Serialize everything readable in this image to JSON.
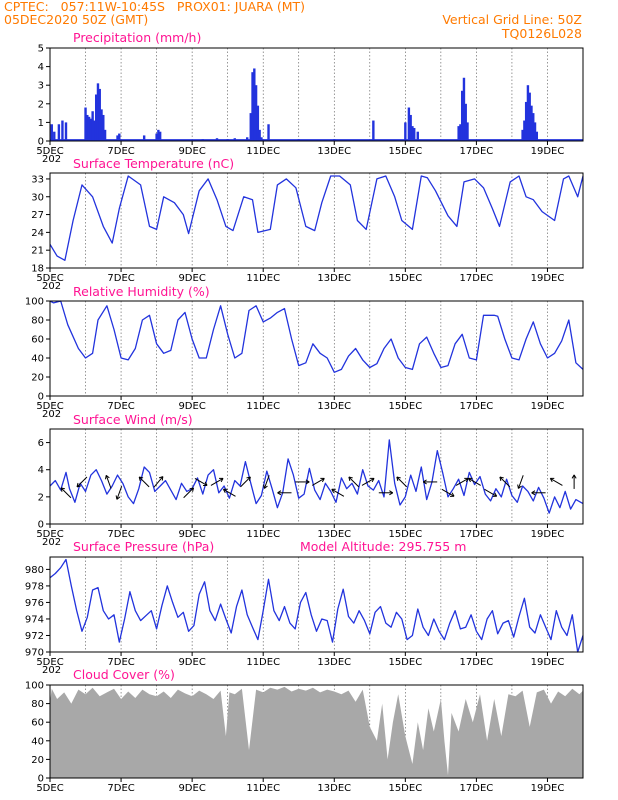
{
  "header": {
    "line1": "CPTEC:   057:11W-10:45S   PROX01: JUARA (MT)",
    "line2": "05DEC2020 50Z (GMT)",
    "grid_note": "Vertical Grid Line: 50Z",
    "code": "TQ0126L028"
  },
  "colors": {
    "header": "#ff7a00",
    "titles": "#ff1493",
    "series": "#2233dd",
    "cloud": "#a8a8a8",
    "grid": "#555555"
  },
  "x_axis": {
    "labels": [
      "5DEC",
      "7DEC",
      "9DEC",
      "11DEC",
      "13DEC",
      "15DEC",
      "17DEC",
      "19DEC"
    ],
    "label_days": [
      5,
      7,
      9,
      11,
      13,
      15,
      17,
      19
    ],
    "year_fragment": "202",
    "range_days": [
      5,
      20
    ]
  },
  "chart_data": [
    {
      "id": "precip",
      "type": "bar",
      "title": "Precipitation (mm/h)",
      "ylim": [
        0,
        5
      ],
      "yticks": [
        0,
        1,
        2,
        3,
        4,
        5
      ],
      "events": [
        [
          5.05,
          0.9
        ],
        [
          5.12,
          0.5
        ],
        [
          5.25,
          0.9
        ],
        [
          5.35,
          1.1
        ],
        [
          5.45,
          1.0
        ],
        [
          6.0,
          1.8
        ],
        [
          6.05,
          1.4
        ],
        [
          6.1,
          1.3
        ],
        [
          6.15,
          1.2
        ],
        [
          6.2,
          1.6
        ],
        [
          6.25,
          1.1
        ],
        [
          6.3,
          2.5
        ],
        [
          6.35,
          3.1
        ],
        [
          6.4,
          2.8
        ],
        [
          6.45,
          1.7
        ],
        [
          6.5,
          1.4
        ],
        [
          6.55,
          0.6
        ],
        [
          6.9,
          0.3
        ],
        [
          6.95,
          0.4
        ],
        [
          7.65,
          0.3
        ],
        [
          8.0,
          0.4
        ],
        [
          8.05,
          0.6
        ],
        [
          8.1,
          0.5
        ],
        [
          9.3,
          0.1
        ],
        [
          9.7,
          0.15
        ],
        [
          10.0,
          0.1
        ],
        [
          10.2,
          0.15
        ],
        [
          10.55,
          0.2
        ],
        [
          10.65,
          1.5
        ],
        [
          10.7,
          3.7
        ],
        [
          10.75,
          3.9
        ],
        [
          10.8,
          3.0
        ],
        [
          10.85,
          1.9
        ],
        [
          10.9,
          0.6
        ],
        [
          10.95,
          0.2
        ],
        [
          11.15,
          0.9
        ],
        [
          12.0,
          0.1
        ],
        [
          13.0,
          0.1
        ],
        [
          14.1,
          1.1
        ],
        [
          15.0,
          1.0
        ],
        [
          15.1,
          1.8
        ],
        [
          15.15,
          1.4
        ],
        [
          15.2,
          0.8
        ],
        [
          15.25,
          0.7
        ],
        [
          15.35,
          0.5
        ],
        [
          16.5,
          0.8
        ],
        [
          16.55,
          0.9
        ],
        [
          16.6,
          2.7
        ],
        [
          16.65,
          3.4
        ],
        [
          16.7,
          2.0
        ],
        [
          16.75,
          1.0
        ],
        [
          18.3,
          0.6
        ],
        [
          18.35,
          1.1
        ],
        [
          18.4,
          2.1
        ],
        [
          18.45,
          3.0
        ],
        [
          18.5,
          2.6
        ],
        [
          18.55,
          1.9
        ],
        [
          18.6,
          1.5
        ],
        [
          18.65,
          1.0
        ],
        [
          18.7,
          0.5
        ]
      ],
      "baseline": 0.05
    },
    {
      "id": "temp",
      "type": "line",
      "title": "Surface Temperature (nC)",
      "ylim": [
        18,
        34
      ],
      "yticks": [
        18,
        21,
        24,
        27,
        30,
        33
      ],
      "x": [
        5.0,
        5.2,
        5.42,
        5.65,
        5.9,
        6.2,
        6.5,
        6.75,
        6.95,
        7.2,
        7.55,
        7.8,
        8.0,
        8.2,
        8.5,
        8.75,
        8.9,
        9.2,
        9.45,
        9.7,
        9.95,
        10.15,
        10.45,
        10.7,
        10.85,
        11.2,
        11.4,
        11.65,
        11.92,
        12.2,
        12.45,
        12.65,
        12.9,
        13.15,
        13.45,
        13.65,
        13.9,
        14.2,
        14.45,
        14.7,
        14.9,
        15.2,
        15.45,
        15.62,
        15.85,
        16.2,
        16.45,
        16.65,
        16.95,
        17.2,
        17.45,
        17.65,
        17.95,
        18.2,
        18.4,
        18.6,
        18.85,
        19.2,
        19.45,
        19.6,
        19.85,
        20.0
      ],
      "y": [
        22,
        20,
        19.3,
        26,
        32,
        30,
        25,
        22.2,
        28,
        33.5,
        32,
        25,
        24.5,
        30,
        29,
        27,
        23.8,
        31,
        33,
        29.5,
        25,
        24.3,
        30,
        29.5,
        24,
        24.5,
        32,
        33,
        31.5,
        25,
        24.3,
        29,
        33.5,
        33.5,
        32,
        26,
        24.5,
        33,
        33.5,
        30,
        26,
        24.5,
        33.5,
        33.2,
        31,
        26.8,
        25,
        32.5,
        33,
        31.5,
        28,
        25,
        32.5,
        33.5,
        30,
        29.5,
        27.5,
        26,
        33,
        33.5,
        30,
        33.5
      ]
    },
    {
      "id": "humidity",
      "type": "line",
      "title": "Relative Humidity (%)",
      "ylim": [
        0,
        100
      ],
      "yticks": [
        0,
        20,
        40,
        60,
        80,
        100
      ],
      "x": [
        5.0,
        5.1,
        5.3,
        5.5,
        5.8,
        6.0,
        6.2,
        6.35,
        6.6,
        6.8,
        7.0,
        7.2,
        7.4,
        7.6,
        7.8,
        8.0,
        8.2,
        8.4,
        8.6,
        8.8,
        9.0,
        9.2,
        9.4,
        9.6,
        9.8,
        10.0,
        10.2,
        10.4,
        10.6,
        10.8,
        11.0,
        11.2,
        11.4,
        11.6,
        11.8,
        12.0,
        12.2,
        12.4,
        12.6,
        12.8,
        13.0,
        13.2,
        13.4,
        13.6,
        13.8,
        14.0,
        14.2,
        14.4,
        14.6,
        14.8,
        15.0,
        15.2,
        15.4,
        15.6,
        15.8,
        16.0,
        16.2,
        16.4,
        16.6,
        16.8,
        17.0,
        17.2,
        17.5,
        17.6,
        17.8,
        18.0,
        18.2,
        18.4,
        18.6,
        18.8,
        19.0,
        19.2,
        19.4,
        19.6,
        19.8,
        20.0
      ],
      "y": [
        100,
        98,
        100,
        75,
        50,
        40,
        45,
        80,
        95,
        70,
        40,
        38,
        50,
        80,
        85,
        55,
        45,
        48,
        80,
        88,
        60,
        40,
        40,
        70,
        95,
        65,
        40,
        45,
        90,
        95,
        78,
        82,
        88,
        92,
        60,
        32,
        35,
        55,
        45,
        40,
        25,
        28,
        42,
        50,
        38,
        30,
        34,
        50,
        60,
        40,
        30,
        28,
        55,
        62,
        45,
        30,
        32,
        55,
        65,
        40,
        38,
        85,
        85,
        84,
        60,
        40,
        38,
        60,
        78,
        55,
        40,
        45,
        58,
        80,
        35,
        28
      ]
    },
    {
      "id": "wind",
      "type": "line",
      "title": "Surface Wind (m/s)",
      "ylim": [
        0,
        7
      ],
      "yticks": [
        0,
        2,
        4,
        6
      ],
      "x": [
        5.0,
        5.15,
        5.3,
        5.45,
        5.55,
        5.7,
        5.85,
        6.0,
        6.15,
        6.3,
        6.45,
        6.6,
        6.75,
        6.9,
        7.05,
        7.2,
        7.35,
        7.5,
        7.65,
        7.8,
        7.95,
        8.1,
        8.25,
        8.4,
        8.55,
        8.7,
        8.85,
        9.0,
        9.15,
        9.3,
        9.45,
        9.6,
        9.75,
        9.9,
        10.05,
        10.2,
        10.35,
        10.5,
        10.65,
        10.8,
        10.95,
        11.1,
        11.25,
        11.4,
        11.55,
        11.7,
        11.85,
        12.0,
        12.15,
        12.3,
        12.45,
        12.6,
        12.75,
        12.9,
        13.05,
        13.2,
        13.35,
        13.5,
        13.65,
        13.8,
        13.95,
        14.1,
        14.25,
        14.4,
        14.55,
        14.7,
        14.85,
        15.0,
        15.15,
        15.3,
        15.45,
        15.6,
        15.75,
        15.9,
        16.05,
        16.2,
        16.35,
        16.5,
        16.65,
        16.8,
        16.95,
        17.1,
        17.25,
        17.4,
        17.55,
        17.7,
        17.85,
        18.0,
        18.15,
        18.3,
        18.45,
        18.6,
        18.75,
        18.9,
        19.05,
        19.2,
        19.35,
        19.5,
        19.65,
        19.8,
        20.0
      ],
      "y": [
        2.8,
        3.2,
        2.5,
        3.8,
        2.6,
        1.6,
        3.0,
        2.4,
        3.6,
        4.0,
        3.2,
        2.2,
        2.8,
        3.6,
        3.0,
        2.0,
        1.5,
        2.6,
        4.2,
        3.8,
        2.4,
        2.8,
        3.2,
        2.5,
        1.8,
        3.0,
        2.4,
        2.6,
        3.4,
        2.2,
        3.6,
        4.0,
        2.3,
        2.8,
        1.9,
        3.2,
        2.8,
        4.6,
        3.0,
        1.5,
        2.1,
        3.9,
        2.6,
        1.2,
        2.3,
        4.8,
        3.6,
        1.9,
        2.2,
        4.1,
        2.5,
        1.8,
        3.0,
        2.4,
        1.6,
        3.4,
        2.6,
        3.0,
        2.2,
        4.0,
        2.8,
        2.5,
        3.2,
        2.0,
        6.2,
        3.0,
        1.4,
        2.0,
        3.6,
        2.4,
        4.2,
        1.8,
        3.1,
        5.4,
        3.8,
        2.0,
        2.6,
        3.3,
        2.1,
        3.8,
        2.9,
        3.5,
        2.2,
        1.7,
        2.6,
        2.0,
        3.3,
        2.1,
        1.6,
        2.8,
        2.4,
        1.7,
        2.7,
        1.9,
        0.8,
        2.0,
        1.2,
        2.4,
        1.1,
        1.8,
        1.5
      ],
      "arrows": [
        {
          "day": 5.45,
          "dir": 315
        },
        {
          "day": 5.9,
          "dir": 225
        },
        {
          "day": 6.65,
          "dir": 340
        },
        {
          "day": 6.95,
          "dir": 200
        },
        {
          "day": 7.65,
          "dir": 315
        },
        {
          "day": 8.05,
          "dir": 40
        },
        {
          "day": 8.9,
          "dir": 45
        },
        {
          "day": 9.25,
          "dir": 120
        },
        {
          "day": 9.7,
          "dir": 60
        },
        {
          "day": 10.05,
          "dir": 300
        },
        {
          "day": 10.5,
          "dir": 45
        },
        {
          "day": 11.1,
          "dir": 200
        },
        {
          "day": 11.6,
          "dir": 270
        },
        {
          "day": 12.1,
          "dir": 90
        },
        {
          "day": 12.55,
          "dir": 60
        },
        {
          "day": 13.1,
          "dir": 300
        },
        {
          "day": 13.55,
          "dir": 315
        },
        {
          "day": 13.95,
          "dir": 60
        },
        {
          "day": 14.45,
          "dir": 90
        },
        {
          "day": 14.9,
          "dir": 315
        },
        {
          "day": 15.7,
          "dir": 270
        },
        {
          "day": 16.2,
          "dir": 120
        },
        {
          "day": 16.6,
          "dir": 60
        },
        {
          "day": 16.95,
          "dir": 300
        },
        {
          "day": 17.4,
          "dir": 120
        },
        {
          "day": 17.8,
          "dir": 315
        },
        {
          "day": 18.25,
          "dir": 200
        },
        {
          "day": 18.75,
          "dir": 270
        },
        {
          "day": 19.25,
          "dir": 300
        },
        {
          "day": 19.75,
          "dir": 0
        }
      ]
    },
    {
      "id": "pressure",
      "type": "line",
      "title": "Surface Pressure (hPa)",
      "subtitle": "Model Altitude: 295.755  m",
      "ylim": [
        970,
        981.5
      ],
      "yticks": [
        970,
        972,
        974,
        976,
        978,
        980
      ],
      "x": [
        5.0,
        5.15,
        5.3,
        5.45,
        5.6,
        5.75,
        5.9,
        6.05,
        6.2,
        6.35,
        6.5,
        6.65,
        6.8,
        6.95,
        7.1,
        7.25,
        7.4,
        7.55,
        7.7,
        7.85,
        8.0,
        8.15,
        8.3,
        8.45,
        8.6,
        8.75,
        8.9,
        9.05,
        9.2,
        9.35,
        9.5,
        9.65,
        9.8,
        9.95,
        10.1,
        10.25,
        10.4,
        10.55,
        10.7,
        10.85,
        11.0,
        11.15,
        11.3,
        11.45,
        11.6,
        11.75,
        11.9,
        12.05,
        12.2,
        12.35,
        12.5,
        12.65,
        12.8,
        12.95,
        13.1,
        13.25,
        13.4,
        13.55,
        13.7,
        13.85,
        14.0,
        14.15,
        14.3,
        14.45,
        14.6,
        14.75,
        14.9,
        15.05,
        15.2,
        15.35,
        15.5,
        15.65,
        15.8,
        15.95,
        16.1,
        16.25,
        16.4,
        16.55,
        16.7,
        16.85,
        17.0,
        17.15,
        17.3,
        17.45,
        17.6,
        17.75,
        17.9,
        18.05,
        18.2,
        18.35,
        18.5,
        18.65,
        18.8,
        18.95,
        19.1,
        19.25,
        19.4,
        19.55,
        19.7,
        19.85,
        20.0
      ],
      "y": [
        979,
        979.5,
        980.2,
        981.2,
        978.0,
        975.0,
        972.5,
        974.2,
        977.5,
        977.8,
        975.0,
        974.0,
        974.5,
        971.2,
        974.0,
        977.3,
        975.0,
        973.8,
        974.4,
        975.0,
        972.8,
        975.6,
        978.0,
        976.0,
        974.2,
        974.8,
        972.5,
        973.2,
        977.0,
        978.5,
        975.0,
        973.8,
        975.8,
        974.0,
        972.3,
        975.5,
        977.5,
        974.5,
        973.0,
        971.5,
        975.0,
        978.8,
        975.0,
        973.8,
        975.5,
        973.5,
        972.8,
        976.0,
        977.2,
        974.5,
        972.5,
        974.0,
        973.8,
        971.2,
        975.2,
        977.6,
        974.3,
        973.5,
        975.0,
        973.8,
        972.2,
        974.8,
        975.5,
        973.5,
        973.0,
        974.8,
        974.0,
        971.5,
        972.0,
        975.2,
        973.0,
        972.0,
        974.0,
        972.5,
        971.5,
        973.5,
        975.0,
        972.8,
        973.0,
        974.5,
        972.5,
        971.5,
        974.0,
        975.0,
        972.2,
        973.5,
        973.8,
        971.8,
        974.3,
        976.5,
        973.0,
        972.3,
        974.5,
        973.0,
        971.5,
        975.0,
        973.0,
        972.0,
        974.5,
        970.0,
        972.0
      ]
    },
    {
      "id": "cloud",
      "type": "area",
      "title": "Cloud Cover (%)",
      "ylim": [
        0,
        100
      ],
      "yticks": [
        0,
        20,
        40,
        60,
        80,
        100
      ],
      "x": [
        5.0,
        5.05,
        5.2,
        5.4,
        5.6,
        5.8,
        6.0,
        6.2,
        6.4,
        6.6,
        6.8,
        7.0,
        7.2,
        7.4,
        7.6,
        7.8,
        8.0,
        8.2,
        8.4,
        8.6,
        8.8,
        9.0,
        9.2,
        9.4,
        9.6,
        9.8,
        9.95,
        10.05,
        10.2,
        10.4,
        10.6,
        10.8,
        11.0,
        11.2,
        11.4,
        11.6,
        11.8,
        12.0,
        12.2,
        12.4,
        12.6,
        12.8,
        13.0,
        13.2,
        13.4,
        13.6,
        13.8,
        14.0,
        14.2,
        14.35,
        14.5,
        14.65,
        14.8,
        15.0,
        15.2,
        15.35,
        15.5,
        15.65,
        15.8,
        16.0,
        16.1,
        16.2,
        16.3,
        16.5,
        16.7,
        16.9,
        17.1,
        17.3,
        17.5,
        17.7,
        17.9,
        18.1,
        18.3,
        18.5,
        18.7,
        18.9,
        19.1,
        19.3,
        19.5,
        19.7,
        19.9,
        20.0
      ],
      "y": [
        82,
        96,
        85,
        92,
        80,
        95,
        90,
        97,
        88,
        92,
        96,
        85,
        93,
        86,
        95,
        90,
        88,
        93,
        86,
        95,
        91,
        88,
        94,
        90,
        85,
        94,
        45,
        92,
        90,
        96,
        30,
        95,
        92,
        97,
        95,
        98,
        93,
        96,
        94,
        97,
        92,
        95,
        93,
        90,
        94,
        82,
        95,
        55,
        40,
        80,
        20,
        60,
        90,
        45,
        15,
        60,
        30,
        75,
        50,
        85,
        40,
        3,
        70,
        50,
        85,
        60,
        90,
        40,
        85,
        45,
        90,
        88,
        94,
        55,
        92,
        95,
        80,
        93,
        88,
        96,
        90,
        94
      ]
    }
  ]
}
